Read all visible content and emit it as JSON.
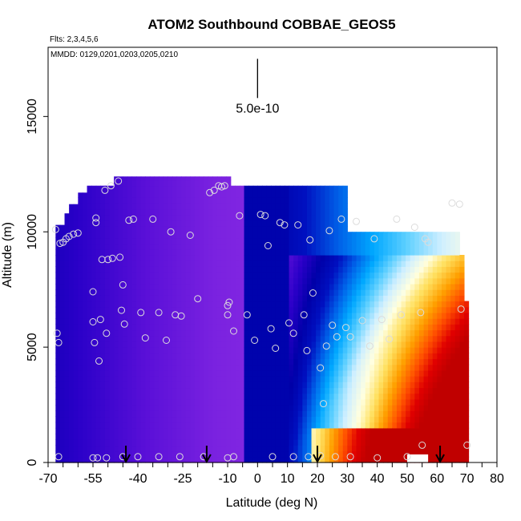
{
  "chart_data": {
    "type": "heatmap",
    "title": "ATOM2 Southbound COBBAE_GEOS5",
    "subtitle_flights": "Flts: 2,3,4,5,6",
    "subtitle_dates": "MMDD: 0129,0201,0203,0205,0210",
    "xlabel": "Latitude (deg N)",
    "ylabel": "Altitude (m)",
    "xlim": [
      -70,
      80
    ],
    "ylim": [
      0,
      18000
    ],
    "x_ticks": [
      -70,
      -55,
      -40,
      -25,
      -10,
      0,
      10,
      20,
      30,
      40,
      50,
      60,
      70,
      80
    ],
    "x_tick_labels": [
      "-70",
      "-55",
      "-40",
      "-25",
      "-10",
      "0",
      "10",
      "20",
      "30",
      "40",
      "50",
      "60",
      "70",
      "80"
    ],
    "y_ticks": [
      0,
      5000,
      10000,
      15000
    ],
    "y_tick_labels": [
      "0",
      "5000",
      "10000",
      "15000"
    ],
    "scale_bar": {
      "label": "5.0e-10",
      "x": 0,
      "y_from": 15800,
      "y_to": 17500
    },
    "arrow_latitudes": [
      -44,
      -17,
      20,
      61
    ],
    "palette": [
      "#8a2be2",
      "#7a22e0",
      "#5a10d8",
      "#2a00c8",
      "#0000a8",
      "#0010c0",
      "#0060e8",
      "#00a8ff",
      "#60d0ff",
      "#cfefff",
      "#ffffe0",
      "#ffe060",
      "#ffa000",
      "#ff5000",
      "#e00000",
      "#c00000"
    ],
    "grid": false,
    "legend": "none",
    "observations": [
      [
        -67.5,
        10100
      ],
      [
        -67,
        5600
      ],
      [
        -66.5,
        5200
      ],
      [
        -66,
        9500
      ],
      [
        -65,
        9550
      ],
      [
        -64,
        9700
      ],
      [
        -63,
        9800
      ],
      [
        -61.5,
        9900
      ],
      [
        -60,
        9950
      ],
      [
        -55,
        7400
      ],
      [
        -55,
        6100
      ],
      [
        -54.5,
        5200
      ],
      [
        -54,
        10600
      ],
      [
        -54,
        10400
      ],
      [
        -53,
        4400
      ],
      [
        -52.5,
        6200
      ],
      [
        -52,
        8800
      ],
      [
        -51,
        11800
      ],
      [
        -50.5,
        5600
      ],
      [
        -50,
        8800
      ],
      [
        -49,
        12000
      ],
      [
        -48.5,
        8850
      ],
      [
        -46.5,
        12200
      ],
      [
        -46,
        8900
      ],
      [
        -45.5,
        6600
      ],
      [
        -45,
        7700
      ],
      [
        -44.5,
        6000
      ],
      [
        -43,
        10500
      ],
      [
        -41.5,
        10550
      ],
      [
        -39,
        6500
      ],
      [
        -37.5,
        5400
      ],
      [
        -35,
        10550
      ],
      [
        -33,
        6500
      ],
      [
        -30.5,
        5300
      ],
      [
        -29,
        10000
      ],
      [
        -27.5,
        6400
      ],
      [
        -25.5,
        6350
      ],
      [
        -22.5,
        9850
      ],
      [
        -20,
        7100
      ],
      [
        -16,
        11700
      ],
      [
        -14.5,
        11800
      ],
      [
        -13,
        12000
      ],
      [
        -12,
        11950
      ],
      [
        -11,
        12000
      ],
      [
        -10,
        6800
      ],
      [
        -10,
        6400
      ],
      [
        -9.5,
        6950
      ],
      [
        -8,
        5700
      ],
      [
        -6,
        10700
      ],
      [
        -3.5,
        6400
      ],
      [
        -1,
        5300
      ],
      [
        1,
        10750
      ],
      [
        2.5,
        10700
      ],
      [
        3.5,
        9400
      ],
      [
        4.5,
        5800
      ],
      [
        6,
        4950
      ],
      [
        7.5,
        10400
      ],
      [
        9,
        10300
      ],
      [
        10.5,
        6050
      ],
      [
        12,
        5600
      ],
      [
        13.5,
        10300
      ],
      [
        15.5,
        6400
      ],
      [
        16.5,
        4850
      ],
      [
        17.5,
        9650
      ],
      [
        18.5,
        7350
      ],
      [
        21,
        4100
      ],
      [
        22,
        2550
      ],
      [
        23,
        5050
      ],
      [
        24,
        10050
      ],
      [
        25,
        5950
      ],
      [
        26.5,
        5450
      ],
      [
        28,
        10550
      ],
      [
        29.5,
        5850
      ],
      [
        31,
        5450
      ],
      [
        33,
        10450
      ],
      [
        35,
        6150
      ],
      [
        37.5,
        5050
      ],
      [
        39,
        9700
      ],
      [
        41.5,
        6200
      ],
      [
        44,
        5350
      ],
      [
        46.5,
        10550
      ],
      [
        48,
        6400
      ],
      [
        52.5,
        10200
      ],
      [
        54.5,
        6500
      ],
      [
        56,
        9700
      ],
      [
        57,
        9550
      ],
      [
        65,
        11250
      ],
      [
        67.5,
        11200
      ],
      [
        68,
        6650
      ],
      [
        -66.5,
        250
      ],
      [
        -55,
        200
      ],
      [
        -53.5,
        200
      ],
      [
        -50.5,
        200
      ],
      [
        -45,
        250
      ],
      [
        -40,
        250
      ],
      [
        -33,
        250
      ],
      [
        -26,
        250
      ],
      [
        -18,
        250
      ],
      [
        -10,
        200
      ],
      [
        -8,
        250
      ],
      [
        5,
        250
      ],
      [
        12,
        250
      ],
      [
        17,
        250
      ],
      [
        21,
        300
      ],
      [
        26,
        250
      ],
      [
        31,
        250
      ],
      [
        40,
        200
      ],
      [
        50,
        250
      ],
      [
        55,
        750
      ],
      [
        70,
        750
      ]
    ]
  }
}
